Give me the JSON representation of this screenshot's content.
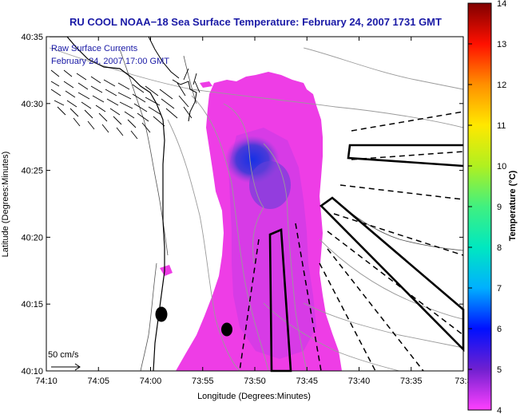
{
  "title": "RU COOL  NOAA−18  Sea Surface Temperature:  February 24, 2007 1731 GMT",
  "currents_legend": {
    "label": "Raw Surface Currents",
    "timestamp": "February 24, 2007 17:00 GMT"
  },
  "scale_label": "50 cm/s",
  "axes": {
    "xlabel": "Longitude (Degrees:Minutes)",
    "ylabel": "Latitude (Degrees:Minutes)",
    "x_ticks": [
      "74:10",
      "74:05",
      "74:00",
      "73:55",
      "73:50",
      "73:45",
      "73:40",
      "73:35",
      "73:3"
    ],
    "y_ticks": [
      "40:35",
      "40:30",
      "40:25",
      "40:20",
      "40:15",
      "40:10"
    ]
  },
  "colorbar": {
    "label": "Temperature (°C)",
    "ticks": [
      "14",
      "13",
      "12",
      "11",
      "10",
      "9",
      "8",
      "7",
      "6",
      "5",
      "4"
    ],
    "min": 4,
    "max": 14
  },
  "colors": {
    "title": "#1a1aa6",
    "sst_warm_patch": "#ee3de6",
    "sst_cold_core": "#2233e0"
  }
}
